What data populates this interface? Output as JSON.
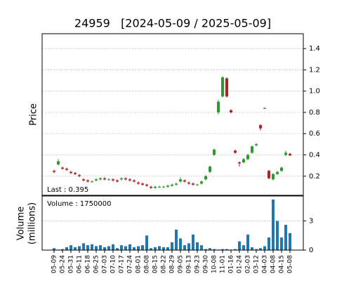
{
  "chart_data": {
    "type": "candlestick",
    "title": "24959   [2024-05-09 / 2025-05-09]",
    "ylabel": "Price",
    "volume_ylabel": [
      "Volume",
      "(millions)"
    ],
    "last_label": "Last : 0.395",
    "volume_label": "Volume : 1750000",
    "categories": [
      "05-09",
      null,
      "05-24",
      null,
      "05-31",
      null,
      "06-11",
      null,
      "06-18",
      null,
      "06-25",
      null,
      "07-03",
      null,
      "07-10",
      null,
      "07-17",
      null,
      "07-24",
      null,
      "08-01",
      null,
      "08-08",
      null,
      "08-15",
      null,
      "08-22",
      null,
      "08-29",
      null,
      "09-05",
      null,
      "09-13",
      null,
      "09-23",
      null,
      "09-30",
      null,
      "10-08",
      null,
      "11-01",
      null,
      "01-16",
      null,
      "01-24",
      null,
      "02-03",
      null,
      "03-12",
      null,
      "04-03",
      null,
      "04-08",
      null,
      "04-15",
      null,
      "05-08"
    ],
    "open": [
      0.25,
      0.31,
      0.28,
      0.27,
      0.24,
      0.23,
      0.21,
      0.17,
      0.16,
      0.15,
      0.16,
      0.17,
      0.18,
      0.17,
      0.17,
      0.16,
      0.17,
      0.18,
      0.17,
      0.16,
      0.14,
      0.13,
      0.12,
      0.1,
      0.09,
      0.1,
      0.1,
      0.1,
      0.11,
      0.12,
      0.15,
      0.16,
      0.14,
      0.13,
      0.12,
      0.13,
      0.17,
      0.24,
      0.4,
      0.8,
      0.95,
      1.12,
      0.82,
      0.44,
      0.33,
      0.33,
      0.36,
      0.42,
      0.49,
      0.68,
      0.84,
      0.25,
      0.17,
      0.22,
      0.25,
      0.4,
      0.41
    ],
    "high": [
      0.26,
      0.36,
      0.29,
      0.28,
      0.25,
      0.24,
      0.22,
      0.18,
      0.17,
      0.16,
      0.18,
      0.19,
      0.19,
      0.18,
      0.18,
      0.17,
      0.19,
      0.19,
      0.18,
      0.17,
      0.15,
      0.14,
      0.13,
      0.11,
      0.11,
      0.11,
      0.11,
      0.12,
      0.13,
      0.14,
      0.19,
      0.17,
      0.15,
      0.14,
      0.13,
      0.16,
      0.21,
      0.3,
      0.46,
      0.92,
      1.14,
      1.13,
      0.83,
      0.45,
      0.34,
      0.37,
      0.41,
      0.49,
      0.51,
      0.69,
      0.85,
      0.26,
      0.23,
      0.25,
      0.29,
      0.44,
      0.42
    ],
    "low": [
      0.23,
      0.3,
      0.26,
      0.25,
      0.22,
      0.21,
      0.19,
      0.15,
      0.14,
      0.14,
      0.15,
      0.16,
      0.16,
      0.16,
      0.15,
      0.14,
      0.16,
      0.16,
      0.15,
      0.14,
      0.12,
      0.11,
      0.1,
      0.08,
      0.08,
      0.09,
      0.09,
      0.09,
      0.1,
      0.11,
      0.14,
      0.14,
      0.12,
      0.11,
      0.11,
      0.12,
      0.16,
      0.23,
      0.39,
      0.78,
      0.94,
      0.94,
      0.79,
      0.41,
      0.29,
      0.32,
      0.35,
      0.41,
      0.48,
      0.63,
      0.83,
      0.17,
      0.16,
      0.21,
      0.24,
      0.39,
      0.39
    ],
    "close": [
      0.24,
      0.34,
      0.27,
      0.26,
      0.23,
      0.22,
      0.2,
      0.16,
      0.15,
      0.15,
      0.17,
      0.18,
      0.17,
      0.17,
      0.16,
      0.15,
      0.18,
      0.17,
      0.16,
      0.15,
      0.13,
      0.12,
      0.11,
      0.09,
      0.1,
      0.1,
      0.1,
      0.11,
      0.12,
      0.13,
      0.17,
      0.15,
      0.13,
      0.12,
      0.12,
      0.15,
      0.2,
      0.29,
      0.45,
      0.9,
      1.13,
      0.95,
      0.8,
      0.42,
      0.32,
      0.36,
      0.4,
      0.48,
      0.5,
      0.65,
      0.84,
      0.18,
      0.22,
      0.24,
      0.28,
      0.42,
      0.395
    ],
    "volume": [
      0.2,
      0.05,
      0.1,
      0.3,
      0.5,
      0.3,
      0.4,
      0.7,
      0.5,
      0.6,
      0.4,
      0.5,
      0.3,
      0.4,
      0.6,
      0.2,
      0.5,
      0.4,
      0.6,
      0.3,
      0.4,
      0.5,
      1.5,
      0.2,
      0.3,
      0.4,
      0.3,
      0.3,
      0.8,
      2.1,
      1.2,
      0.5,
      0.7,
      1.6,
      0.8,
      0.5,
      0.1,
      0.2,
      0.1,
      0.05,
      0.1,
      0.1,
      0.05,
      0.1,
      0.9,
      0.5,
      1.6,
      0.3,
      0.1,
      0.2,
      0.4,
      1.3,
      5.2,
      3.0,
      1.3,
      2.6,
      1.75
    ],
    "up_color": "#2a9a2a",
    "down_color": "#b22222",
    "volume_color": "#1f77b4",
    "ylim": [
      0.02,
      1.54
    ],
    "yticks": [
      0.2,
      0.4,
      0.6,
      0.8,
      {
        "value": 1,
        "label": "1.0"
      },
      1.2,
      1.4
    ],
    "volume_ylim": [
      0,
      5.56
    ],
    "volume_yticks": [
      0,
      3
    ],
    "grid": true
  }
}
